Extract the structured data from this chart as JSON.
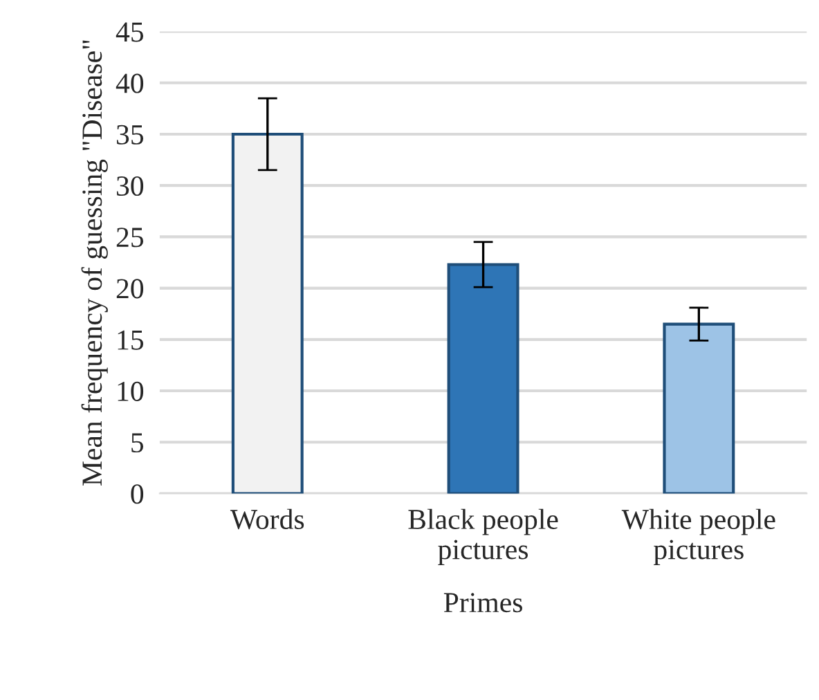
{
  "chart_data": {
    "type": "bar",
    "xlabel": "Primes",
    "ylabel": "Mean frequency of guessing \"Disease\"",
    "categories": [
      "Words",
      "Black people\npictures",
      "White people\npictures"
    ],
    "values": [
      35.0,
      22.3,
      16.5
    ],
    "errors": [
      3.5,
      2.2,
      1.6
    ],
    "colors": [
      "#f2f2f2",
      "#2e75b6",
      "#9dc3e6"
    ],
    "ylim": [
      0,
      45
    ],
    "yticks": [
      0,
      5,
      10,
      15,
      20,
      25,
      30,
      35,
      40,
      45
    ],
    "grid": "y"
  }
}
